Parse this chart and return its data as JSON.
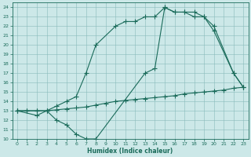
{
  "bg_color": "#cce8e8",
  "grid_color": "#88bbbb",
  "line_color": "#1a6b5a",
  "line_width": 0.8,
  "marker": "+",
  "marker_size": 4,
  "marker_edge_width": 0.8,
  "xlabel": "Humidex (Indice chaleur)",
  "xlim": [
    -0.5,
    23.5
  ],
  "ylim": [
    10,
    24.5
  ],
  "xticks": [
    0,
    1,
    2,
    3,
    4,
    5,
    6,
    7,
    8,
    9,
    10,
    11,
    12,
    13,
    14,
    15,
    16,
    17,
    18,
    19,
    20,
    21,
    22,
    23
  ],
  "yticks": [
    10,
    11,
    12,
    13,
    14,
    15,
    16,
    17,
    18,
    19,
    20,
    21,
    22,
    23,
    24
  ],
  "line1_x": [
    0,
    1,
    2,
    3,
    4,
    5,
    6,
    7,
    8,
    9,
    10,
    11,
    12,
    13,
    14,
    15,
    16,
    17,
    18,
    19,
    20,
    21,
    22,
    23
  ],
  "line1_y": [
    13,
    13,
    13,
    13,
    13.1,
    13.2,
    13.3,
    13.4,
    13.6,
    13.8,
    14.0,
    14.1,
    14.2,
    14.3,
    14.4,
    14.5,
    14.6,
    14.8,
    14.9,
    15.0,
    15.1,
    15.2,
    15.4,
    15.5
  ],
  "line2_x": [
    0,
    2,
    3,
    4,
    5,
    6,
    7,
    8,
    13,
    14,
    15,
    16,
    17,
    18,
    19,
    20,
    22,
    23
  ],
  "line2_y": [
    13,
    12.5,
    13,
    12,
    11.5,
    10.5,
    10,
    10,
    17,
    17.5,
    24,
    23.5,
    23.5,
    23.5,
    23,
    22,
    17,
    15.5
  ],
  "line3_x": [
    0,
    1,
    2,
    3,
    4,
    5,
    6,
    7,
    8,
    10,
    11,
    12,
    13,
    14,
    15,
    16,
    17,
    18,
    19,
    20,
    22,
    23
  ],
  "line3_y": [
    13,
    13,
    13,
    13,
    13.5,
    14,
    14.5,
    17,
    20,
    22,
    22.5,
    22.5,
    23,
    23,
    24,
    23.5,
    23.5,
    23,
    23,
    21.5,
    17,
    15.5
  ]
}
